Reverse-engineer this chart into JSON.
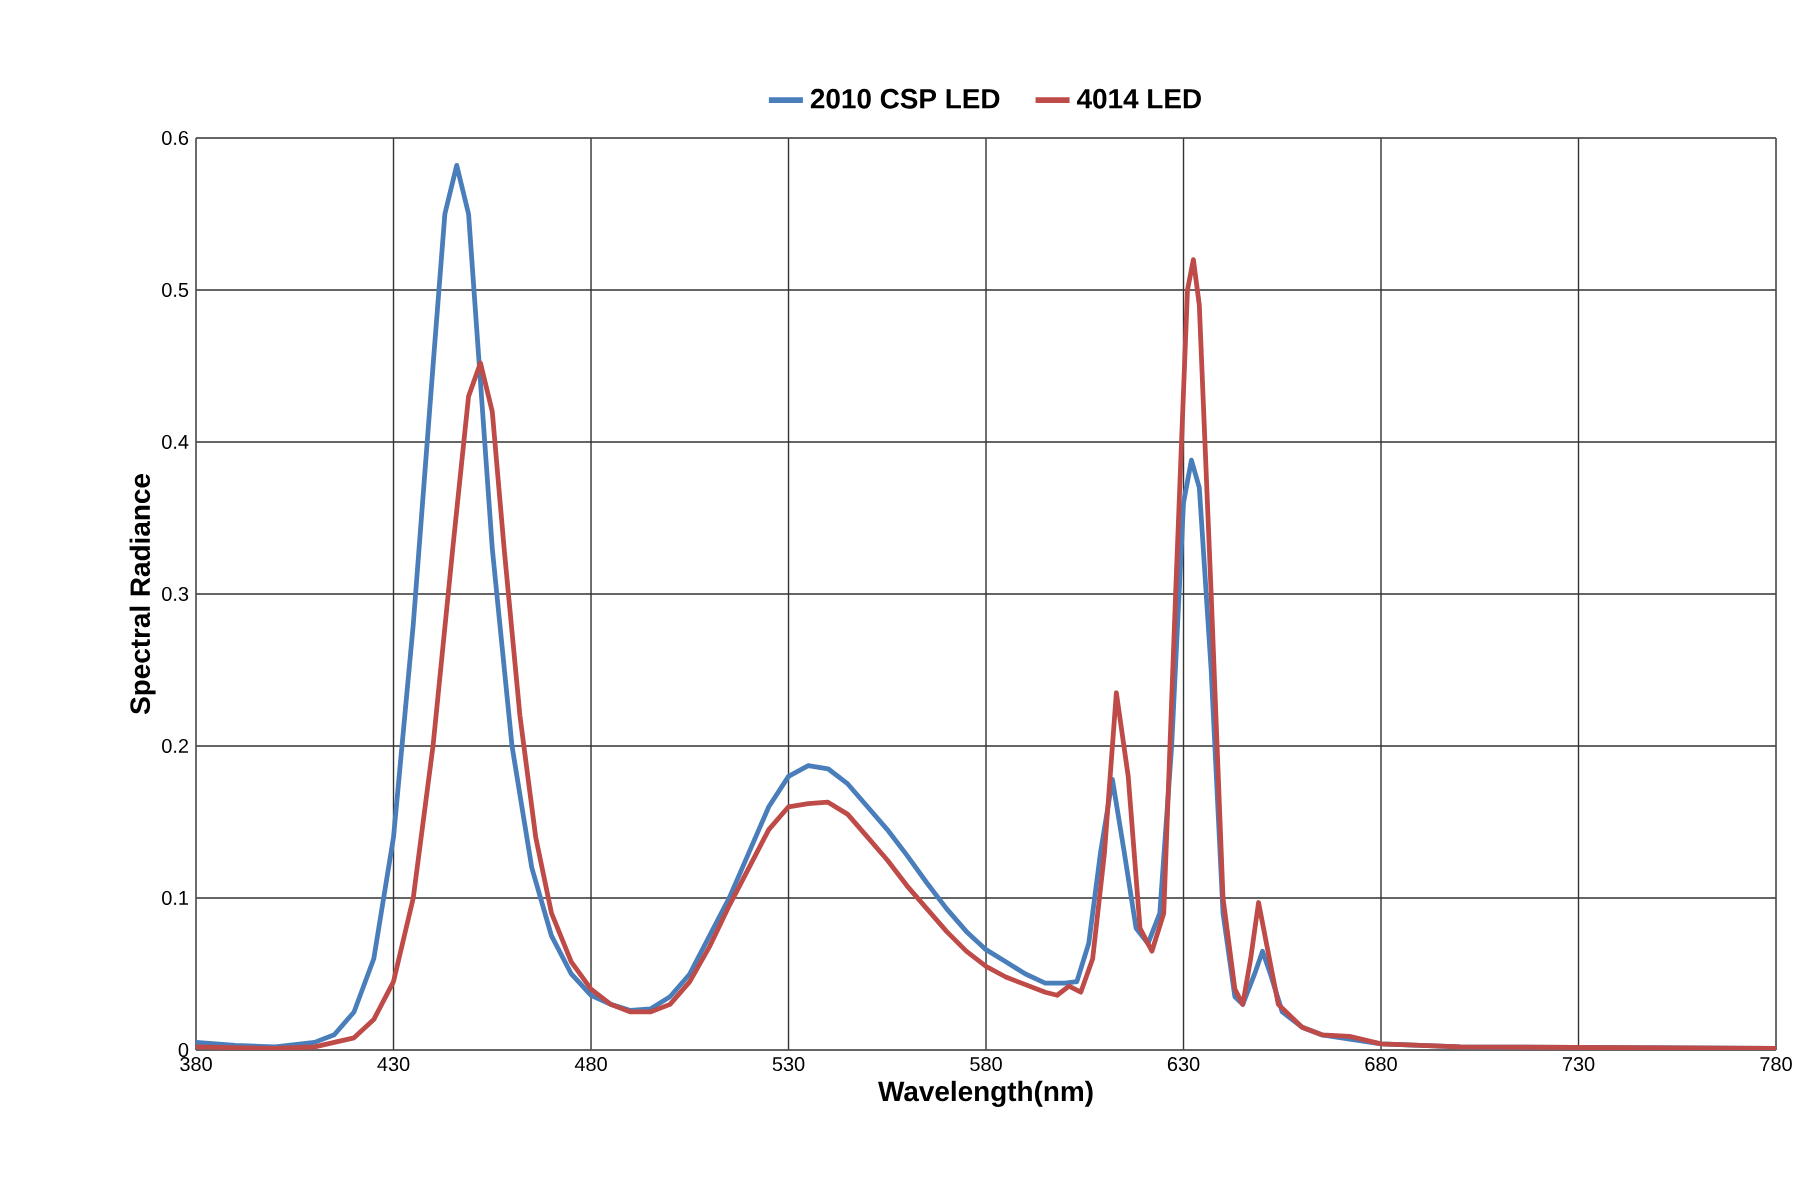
{
  "chart_data": {
    "type": "line",
    "xlabel": "Wavelength(nm)",
    "ylabel": "Spectral Radiance",
    "xlim": [
      380,
      780
    ],
    "ylim": [
      0,
      0.6
    ],
    "xticks": [
      380,
      430,
      480,
      530,
      580,
      630,
      680,
      730,
      780
    ],
    "yticks": [
      0,
      0.1,
      0.2,
      0.3,
      0.4,
      0.5,
      0.6
    ],
    "grid": true,
    "legend": "top",
    "marker": "none",
    "line_style": "solid",
    "series": [
      {
        "name": "2010 CSP LED",
        "color": "#4a7ebb",
        "x": [
          380,
          390,
          400,
          410,
          415,
          420,
          425,
          430,
          435,
          440,
          443,
          446,
          449,
          452,
          455,
          460,
          465,
          470,
          475,
          480,
          485,
          490,
          495,
          500,
          505,
          510,
          515,
          520,
          525,
          530,
          535,
          540,
          545,
          550,
          555,
          560,
          565,
          570,
          575,
          580,
          585,
          590,
          595,
          600,
          603,
          606,
          609,
          612,
          615,
          618,
          621,
          624,
          627,
          630,
          632,
          634,
          637,
          640,
          643,
          645,
          648,
          650,
          652,
          655,
          660,
          665,
          670,
          680,
          700,
          780
        ],
        "values": [
          0.005,
          0.003,
          0.002,
          0.005,
          0.01,
          0.025,
          0.06,
          0.14,
          0.28,
          0.45,
          0.55,
          0.582,
          0.55,
          0.44,
          0.33,
          0.2,
          0.12,
          0.075,
          0.05,
          0.036,
          0.03,
          0.026,
          0.027,
          0.035,
          0.05,
          0.075,
          0.1,
          0.13,
          0.16,
          0.18,
          0.187,
          0.185,
          0.175,
          0.16,
          0.145,
          0.128,
          0.11,
          0.093,
          0.078,
          0.066,
          0.058,
          0.05,
          0.044,
          0.044,
          0.045,
          0.07,
          0.13,
          0.178,
          0.13,
          0.08,
          0.07,
          0.09,
          0.2,
          0.36,
          0.388,
          0.37,
          0.25,
          0.09,
          0.035,
          0.03,
          0.05,
          0.065,
          0.05,
          0.025,
          0.015,
          0.01,
          0.008,
          0.004,
          0.002,
          0.001
        ]
      },
      {
        "name": "4014 LED",
        "color": "#be4b48",
        "x": [
          380,
          400,
          410,
          420,
          425,
          430,
          435,
          440,
          445,
          449,
          452,
          455,
          458,
          462,
          466,
          470,
          475,
          480,
          485,
          490,
          495,
          500,
          505,
          510,
          515,
          520,
          525,
          530,
          535,
          540,
          545,
          550,
          555,
          560,
          565,
          570,
          575,
          580,
          585,
          590,
          595,
          598,
          601,
          604,
          607,
          610,
          613,
          616,
          619,
          622,
          625,
          628,
          631,
          632.5,
          634,
          637,
          640,
          643,
          645,
          647,
          649,
          651,
          654,
          660,
          665,
          672,
          680,
          700,
          780
        ],
        "values": [
          0.002,
          0.001,
          0.002,
          0.008,
          0.02,
          0.045,
          0.1,
          0.2,
          0.33,
          0.43,
          0.452,
          0.42,
          0.33,
          0.22,
          0.14,
          0.09,
          0.058,
          0.04,
          0.03,
          0.025,
          0.025,
          0.03,
          0.045,
          0.068,
          0.095,
          0.12,
          0.145,
          0.16,
          0.162,
          0.163,
          0.155,
          0.14,
          0.125,
          0.108,
          0.093,
          0.078,
          0.065,
          0.055,
          0.048,
          0.043,
          0.038,
          0.036,
          0.042,
          0.038,
          0.06,
          0.13,
          0.235,
          0.18,
          0.08,
          0.065,
          0.09,
          0.3,
          0.5,
          0.52,
          0.49,
          0.3,
          0.1,
          0.04,
          0.03,
          0.06,
          0.097,
          0.07,
          0.03,
          0.015,
          0.01,
          0.009,
          0.004,
          0.002,
          0.001
        ]
      }
    ]
  }
}
